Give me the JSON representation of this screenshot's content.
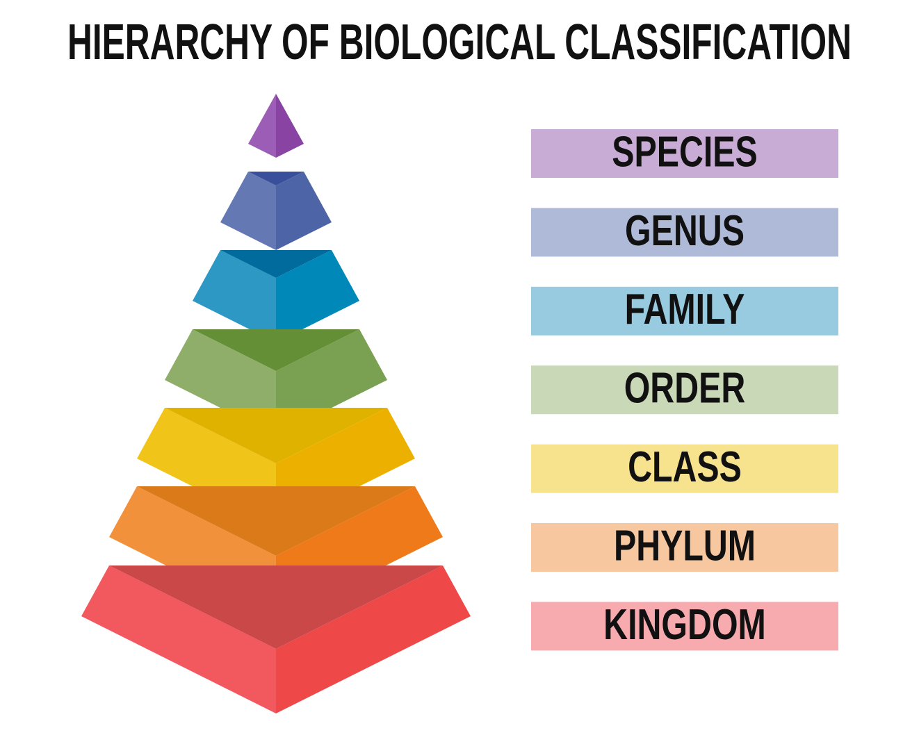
{
  "title": "HIERARCHY OF BIOLOGICAL CLASSIFICATION",
  "levels": [
    {
      "label": "SPECIES",
      "color": "#c9acd5"
    },
    {
      "label": "GENUS",
      "color": "#aebad8"
    },
    {
      "label": "FAMILY",
      "color": "#98cbe0"
    },
    {
      "label": "ORDER",
      "color": "#c9d8b6"
    },
    {
      "label": "CLASS",
      "color": "#f7e38e"
    },
    {
      "label": "PHYLUM",
      "color": "#f7c7a0"
    },
    {
      "label": "KINGDOM",
      "color": "#f7abaf"
    }
  ]
}
